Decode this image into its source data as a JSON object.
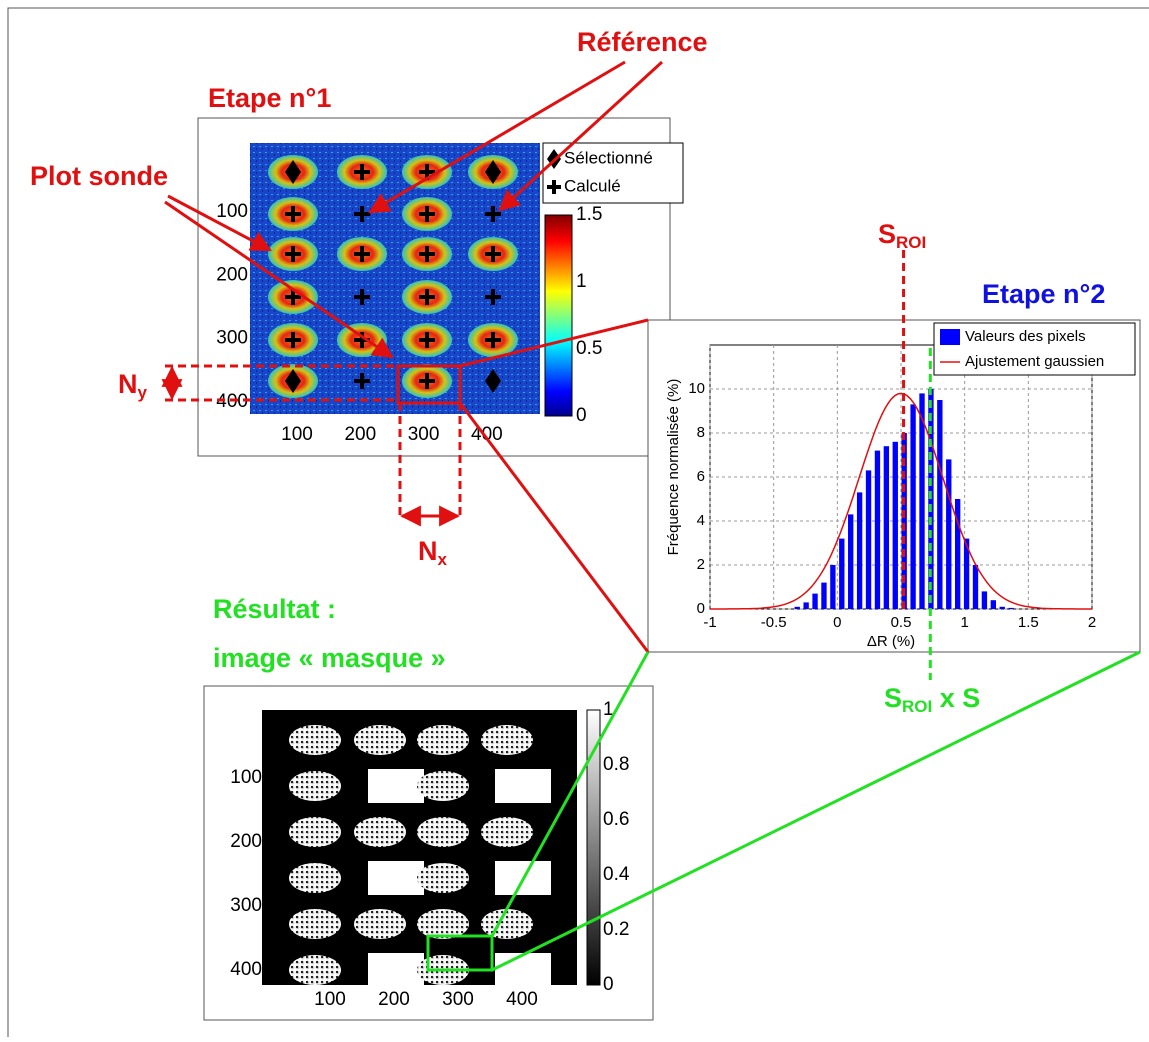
{
  "annotations": {
    "step1": "Etape n°1",
    "reference": "Référence",
    "probe": "Plot sonde",
    "ny": {
      "main": "N",
      "sub": "y"
    },
    "nx": {
      "main": "N",
      "sub": "x"
    },
    "sroi": {
      "main": "S",
      "sub": "ROI"
    },
    "step2": "Etape n°2",
    "sroi_s": {
      "main": "S",
      "sub": "ROI",
      "suffix": " x S"
    },
    "result": "Résultat :",
    "mask_image": "image « masque »"
  },
  "map_panel": {
    "xticks": [
      100,
      200,
      300,
      400
    ],
    "yticks": [
      100,
      200,
      300,
      400
    ],
    "legend": [
      "Sélectionné",
      "Calculé"
    ],
    "colorbar_ticks": [
      0,
      0.5,
      1,
      1.5
    ]
  },
  "histogram": {
    "xlabel": "ΔR (%)",
    "ylabel": "Fréquence normalisée (%)",
    "legend": [
      "Valeurs des pixels",
      "Ajustement gaussien"
    ],
    "bar_color": "#0000ff",
    "fit_color": "#e01010",
    "xlim": [
      -1,
      2
    ],
    "ylim": [
      0,
      12
    ],
    "xticks": [
      -1,
      -0.5,
      0,
      0.5,
      1,
      1.5,
      2
    ],
    "yticks": [
      0,
      2,
      4,
      6,
      8,
      10
    ],
    "grid": true,
    "bins": [
      -0.35,
      -0.28,
      -0.21,
      -0.14,
      -0.07,
      0,
      0.07,
      0.14,
      0.21,
      0.28,
      0.35,
      0.42,
      0.49,
      0.56,
      0.63,
      0.7,
      0.77,
      0.84,
      0.91,
      0.98,
      1.05,
      1.12,
      1.19,
      1.26,
      1.33,
      1.4
    ],
    "values": [
      0.1,
      0.3,
      0.7,
      1.2,
      2.0,
      3.2,
      4.3,
      5.3,
      6.3,
      7.2,
      7.4,
      7.6,
      8.0,
      9.3,
      9.8,
      10.0,
      9.5,
      6.8,
      5.0,
      3.2,
      2.0,
      0.8,
      0.4,
      0.1,
      0.05
    ],
    "fit": {
      "mean": 0.5,
      "sd": 0.33,
      "peak": 9.8
    },
    "s_roi": 0.52,
    "s_roi_x_s": 0.73
  },
  "mask_panel": {
    "xticks": [
      100,
      200,
      300,
      400
    ],
    "yticks": [
      100,
      200,
      300,
      400
    ],
    "colorbar_ticks": [
      0,
      0.2,
      0.4,
      0.6,
      0.8,
      1
    ]
  }
}
